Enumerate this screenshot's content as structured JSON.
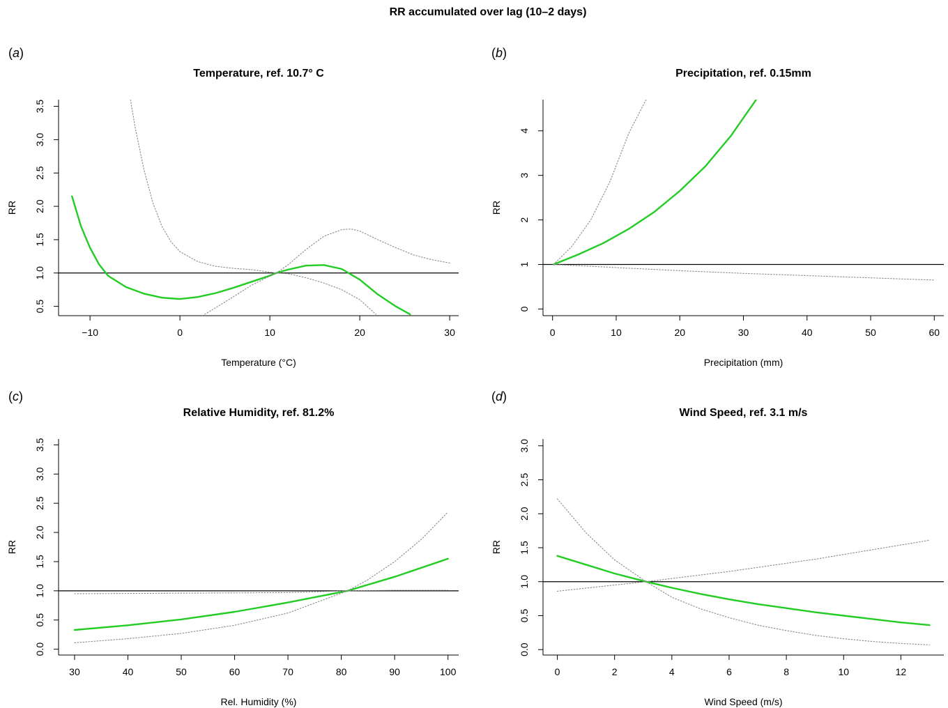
{
  "figure": {
    "title": "RR accumulated over lag (10–2 days)"
  },
  "colors": {
    "estimate": "#22cc22",
    "ci": "#888888",
    "reference": "#000000"
  },
  "chart_data": [
    {
      "type": "line",
      "panel_label": "(a)",
      "letter": "a",
      "title": "Temperature, ref. 10.7° C",
      "xlabel": "Temperature (°C)",
      "ylabel": "RR",
      "xlim": [
        -13.5,
        31
      ],
      "ylim": [
        0.36,
        3.6
      ],
      "xticks": [
        -10,
        0,
        10,
        20,
        30
      ],
      "xtick_labels": [
        "−10",
        "0",
        "10",
        "20",
        "30"
      ],
      "yticks": [
        0.5,
        1.0,
        1.5,
        2.0,
        2.5,
        3.0,
        3.5
      ],
      "ytick_labels": [
        "0.5",
        "1.0",
        "1.5",
        "2.0",
        "2.5",
        "3.0",
        "3.5"
      ],
      "reference_line": 1.0,
      "series": [
        {
          "role": "estimate",
          "x": [
            -12,
            -11,
            -10,
            -9,
            -8,
            -6,
            -4,
            -2,
            0,
            2,
            4,
            6,
            8,
            10,
            10.7,
            12,
            14,
            16,
            18,
            20,
            22,
            24,
            25.6
          ],
          "y": [
            2.15,
            1.7,
            1.38,
            1.13,
            0.96,
            0.79,
            0.69,
            0.63,
            0.61,
            0.64,
            0.7,
            0.78,
            0.87,
            0.96,
            1.0,
            1.05,
            1.11,
            1.12,
            1.06,
            0.9,
            0.68,
            0.5,
            0.38
          ]
        },
        {
          "role": "ci_upper",
          "x": [
            -5.5,
            -5,
            -4,
            -3,
            -2,
            -1,
            0,
            2,
            4,
            6,
            8,
            10.7,
            12,
            14,
            16,
            18,
            19,
            20,
            22,
            24,
            26,
            28,
            30
          ],
          "y": [
            3.6,
            3.2,
            2.55,
            2.05,
            1.7,
            1.47,
            1.32,
            1.17,
            1.1,
            1.07,
            1.05,
            1.0,
            1.12,
            1.35,
            1.55,
            1.65,
            1.66,
            1.63,
            1.5,
            1.38,
            1.27,
            1.2,
            1.15
          ]
        },
        {
          "role": "ci_lower",
          "x": [
            2.5,
            4,
            6,
            8,
            10.7,
            12,
            14,
            16,
            18,
            20,
            21.8
          ],
          "y": [
            0.36,
            0.48,
            0.65,
            0.82,
            1.0,
            0.99,
            0.93,
            0.85,
            0.75,
            0.6,
            0.38
          ]
        }
      ]
    },
    {
      "type": "line",
      "panel_label": "(b)",
      "letter": "b",
      "title": "Precipitation, ref. 0.15mm",
      "xlabel": "Precipitation (mm)",
      "ylabel": "RR",
      "xlim": [
        -1.5,
        61.5
      ],
      "ylim": [
        -0.15,
        4.7
      ],
      "xticks": [
        0,
        10,
        20,
        30,
        40,
        50,
        60
      ],
      "xtick_labels": [
        "0",
        "10",
        "20",
        "30",
        "40",
        "50",
        "60"
      ],
      "yticks": [
        0,
        1,
        2,
        3,
        4
      ],
      "ytick_labels": [
        "0",
        "1",
        "2",
        "3",
        "4"
      ],
      "reference_line": 1.0,
      "series": [
        {
          "role": "estimate",
          "x": [
            0.15,
            4,
            8,
            12,
            16,
            20,
            24,
            28,
            32
          ],
          "y": [
            1.0,
            1.22,
            1.48,
            1.8,
            2.18,
            2.65,
            3.2,
            3.88,
            4.7
          ]
        },
        {
          "role": "ci_upper",
          "x": [
            0.15,
            3,
            6,
            9,
            12,
            14.7
          ],
          "y": [
            1.0,
            1.4,
            2.0,
            2.85,
            3.95,
            4.7
          ]
        },
        {
          "role": "ci_lower",
          "x": [
            0.15,
            10,
            20,
            30,
            40,
            50,
            60
          ],
          "y": [
            1.0,
            0.93,
            0.86,
            0.8,
            0.75,
            0.7,
            0.65
          ]
        }
      ]
    },
    {
      "type": "line",
      "panel_label": "(c)",
      "letter": "c",
      "title": "Relative Humidity, ref. 81.2%",
      "xlabel": "Rel. Humidity (%)",
      "ylabel": "RR",
      "xlim": [
        27,
        102
      ],
      "ylim": [
        -0.1,
        3.6
      ],
      "xticks": [
        30,
        40,
        50,
        60,
        70,
        80,
        90,
        100
      ],
      "xtick_labels": [
        "30",
        "40",
        "50",
        "60",
        "70",
        "80",
        "90",
        "100"
      ],
      "yticks": [
        0.0,
        0.5,
        1.0,
        1.5,
        2.0,
        2.5,
        3.0,
        3.5
      ],
      "ytick_labels": [
        "0.0",
        "0.5",
        "1.0",
        "1.5",
        "2.0",
        "2.5",
        "3.0",
        "3.5"
      ],
      "reference_line": 1.0,
      "series": [
        {
          "role": "estimate",
          "x": [
            30,
            40,
            50,
            60,
            70,
            81.2,
            90,
            100
          ],
          "y": [
            0.33,
            0.41,
            0.51,
            0.64,
            0.8,
            1.0,
            1.24,
            1.55
          ]
        },
        {
          "role": "ci_upper",
          "x": [
            30,
            50,
            70,
            81.2,
            85,
            90,
            95,
            100
          ],
          "y": [
            0.95,
            0.96,
            0.97,
            1.0,
            1.19,
            1.5,
            1.88,
            2.35
          ]
        },
        {
          "role": "ci_lower",
          "x": [
            30,
            40,
            50,
            60,
            70,
            81.2,
            90,
            100
          ],
          "y": [
            0.11,
            0.18,
            0.27,
            0.41,
            0.62,
            1.0,
            1.01,
            1.01
          ]
        }
      ]
    },
    {
      "type": "line",
      "panel_label": "(d)",
      "letter": "d",
      "title": "Wind Speed, ref. 3.1 m/s",
      "xlabel": "Wind Speed (m/s)",
      "ylabel": "RR",
      "xlim": [
        -0.5,
        13.5
      ],
      "ylim": [
        -0.08,
        3.1
      ],
      "xticks": [
        0,
        2,
        4,
        6,
        8,
        10,
        12
      ],
      "xtick_labels": [
        "0",
        "2",
        "4",
        "6",
        "8",
        "10",
        "12"
      ],
      "yticks": [
        0.0,
        0.5,
        1.0,
        1.5,
        2.0,
        2.5,
        3.0
      ],
      "ytick_labels": [
        "0.0",
        "0.5",
        "1.0",
        "1.5",
        "2.0",
        "2.5",
        "3.0"
      ],
      "reference_line": 1.0,
      "series": [
        {
          "role": "estimate",
          "x": [
            0,
            1,
            2,
            3.1,
            4,
            5,
            6,
            7,
            8,
            9,
            10,
            11,
            12,
            13
          ],
          "y": [
            1.38,
            1.25,
            1.12,
            1.0,
            0.91,
            0.82,
            0.74,
            0.67,
            0.61,
            0.55,
            0.5,
            0.45,
            0.4,
            0.36
          ]
        },
        {
          "role": "ci_upper",
          "x": [
            0,
            3.1,
            6,
            9,
            13
          ],
          "y": [
            0.86,
            1.0,
            1.15,
            1.33,
            1.61
          ]
        },
        {
          "role": "ci_lower",
          "x": [
            0,
            1,
            2,
            3.1,
            4,
            5,
            6,
            7,
            8,
            9,
            10,
            11,
            12,
            13
          ],
          "y": [
            2.22,
            1.72,
            1.32,
            1.0,
            0.77,
            0.6,
            0.47,
            0.36,
            0.28,
            0.21,
            0.16,
            0.12,
            0.09,
            0.07
          ]
        }
      ]
    }
  ]
}
